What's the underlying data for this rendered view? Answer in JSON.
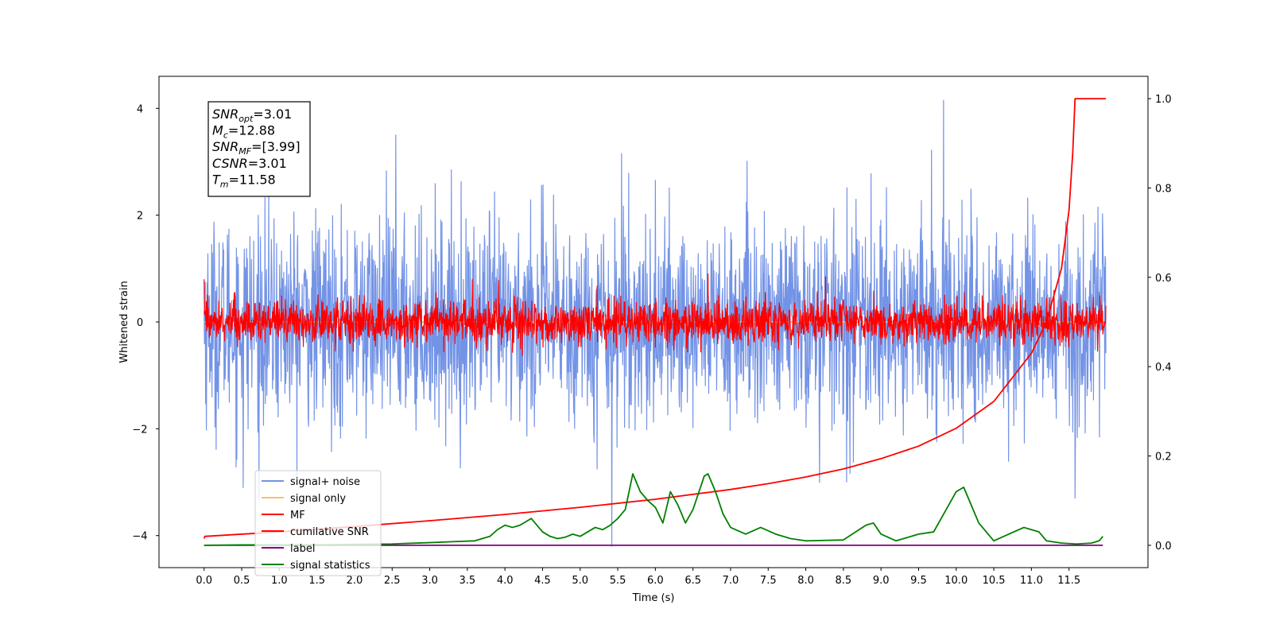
{
  "chart_data": {
    "type": "line",
    "xlabel": "Time (s)",
    "ylabel": "Whitened strain",
    "xlim": [
      -0.6,
      12.55
    ],
    "ylim": [
      -4.6,
      4.6
    ],
    "y2lim": [
      -0.05,
      1.05
    ],
    "x_ticks": [
      0.0,
      0.5,
      1.0,
      1.5,
      2.0,
      2.5,
      3.0,
      3.5,
      4.0,
      4.5,
      5.0,
      5.5,
      6.0,
      6.5,
      7.0,
      7.5,
      8.0,
      8.5,
      9.0,
      9.5,
      10.0,
      10.5,
      11.0,
      11.5
    ],
    "x_tick_labels": [
      "0.0",
      "0.5",
      "1.0",
      "1.5",
      "2.0",
      "2.5",
      "3.0",
      "3.5",
      "4.0",
      "4.5",
      "5.0",
      "5.5",
      "6.0",
      "6.5",
      "7.0",
      "7.5",
      "8.0",
      "8.5",
      "9.0",
      "9.5",
      "10.0",
      "10.5",
      "11.0",
      "11.5"
    ],
    "y_ticks": [
      -4,
      -2,
      0,
      2,
      4
    ],
    "y_tick_labels": [
      "−4",
      "−2",
      "0",
      "2",
      "4"
    ],
    "y2_ticks": [
      0.0,
      0.2,
      0.4,
      0.6,
      0.8,
      1.0
    ],
    "y2_tick_labels": [
      "0.0",
      "0.2",
      "0.4",
      "0.6",
      "0.8",
      "1.0"
    ],
    "grid": false,
    "legend_position": "lower-left",
    "annotation": [
      {
        "sym": "SNR",
        "sub": "opt",
        "val": "=3.01"
      },
      {
        "sym": "M",
        "sub": "c",
        "val": "=12.88"
      },
      {
        "sym": "SNR",
        "sub": "MF",
        "val": "=[3.99]"
      },
      {
        "sym": "CSNR",
        "sub": "",
        "val": "=3.01"
      },
      {
        "sym": "T",
        "sub": "m",
        "val": "=11.58"
      }
    ],
    "series": [
      {
        "name": "signal+ noise",
        "color": "#7393e6",
        "axis": "left",
        "style": "noise",
        "x_range": [
          0.0,
          11.99
        ],
        "std": 0.95,
        "spikes": [
          [
            5.42,
            -4.2
          ],
          [
            9.83,
            4.15
          ],
          [
            11.58,
            -3.3
          ],
          [
            2.55,
            3.5
          ],
          [
            5.55,
            3.15
          ],
          [
            0.52,
            -3.1
          ]
        ]
      },
      {
        "name": "signal only",
        "color": "#f5c26b",
        "axis": "left",
        "style": "flat",
        "x": [
          0.0,
          11.99
        ],
        "y": [
          0.0,
          0.0
        ]
      },
      {
        "name": "MF",
        "color": "#ff0000",
        "axis": "left",
        "style": "noise",
        "x_range": [
          0.0,
          11.99
        ],
        "std": 0.2,
        "spikes": [
          [
            0.0,
            0.8
          ],
          [
            6.7,
            0.9
          ]
        ]
      },
      {
        "name": "cumilative SNR",
        "color": "#ff0000",
        "axis": "right",
        "x": [
          0.0,
          0.01,
          1.0,
          2.0,
          3.0,
          4.0,
          5.0,
          6.0,
          7.0,
          7.5,
          8.0,
          8.5,
          9.0,
          9.5,
          10.0,
          10.5,
          11.0,
          11.2,
          11.4,
          11.5,
          11.55,
          11.58,
          11.99
        ],
        "y": [
          0.015,
          0.02,
          0.03,
          0.042,
          0.055,
          0.069,
          0.085,
          0.103,
          0.125,
          0.138,
          0.153,
          0.171,
          0.194,
          0.222,
          0.262,
          0.322,
          0.43,
          0.5,
          0.62,
          0.75,
          0.88,
          1.0,
          1.0
        ]
      },
      {
        "name": "label",
        "color": "#800080",
        "axis": "right",
        "x": [
          0.0,
          11.95
        ],
        "y": [
          0.0,
          0.0
        ]
      },
      {
        "name": "signal statistics",
        "color": "#008000",
        "axis": "right",
        "x": [
          0.0,
          0.5,
          1.0,
          1.5,
          2.0,
          2.5,
          3.0,
          3.3,
          3.6,
          3.8,
          3.9,
          4.0,
          4.1,
          4.2,
          4.3,
          4.35,
          4.4,
          4.5,
          4.6,
          4.7,
          4.8,
          4.9,
          5.0,
          5.1,
          5.2,
          5.3,
          5.4,
          5.5,
          5.6,
          5.7,
          5.8,
          5.9,
          6.0,
          6.1,
          6.2,
          6.3,
          6.4,
          6.5,
          6.6,
          6.65,
          6.7,
          6.8,
          6.9,
          7.0,
          7.2,
          7.4,
          7.6,
          7.8,
          8.0,
          8.5,
          8.8,
          8.9,
          9.0,
          9.2,
          9.5,
          9.7,
          9.8,
          9.9,
          10.0,
          10.1,
          10.2,
          10.3,
          10.4,
          10.5,
          10.7,
          10.9,
          11.0,
          11.1,
          11.2,
          11.4,
          11.6,
          11.8,
          11.9,
          11.95
        ],
        "y": [
          0.0,
          0.001,
          0.001,
          0.001,
          0.002,
          0.003,
          0.006,
          0.008,
          0.01,
          0.02,
          0.035,
          0.045,
          0.04,
          0.045,
          0.055,
          0.06,
          0.05,
          0.03,
          0.02,
          0.015,
          0.018,
          0.025,
          0.02,
          0.03,
          0.04,
          0.035,
          0.045,
          0.06,
          0.08,
          0.16,
          0.12,
          0.1,
          0.085,
          0.05,
          0.12,
          0.09,
          0.05,
          0.08,
          0.13,
          0.155,
          0.16,
          0.12,
          0.07,
          0.04,
          0.025,
          0.04,
          0.025,
          0.015,
          0.01,
          0.012,
          0.045,
          0.05,
          0.025,
          0.01,
          0.025,
          0.03,
          0.06,
          0.09,
          0.12,
          0.13,
          0.09,
          0.05,
          0.03,
          0.01,
          0.025,
          0.04,
          0.035,
          0.03,
          0.01,
          0.005,
          0.003,
          0.005,
          0.01,
          0.02
        ]
      }
    ]
  }
}
